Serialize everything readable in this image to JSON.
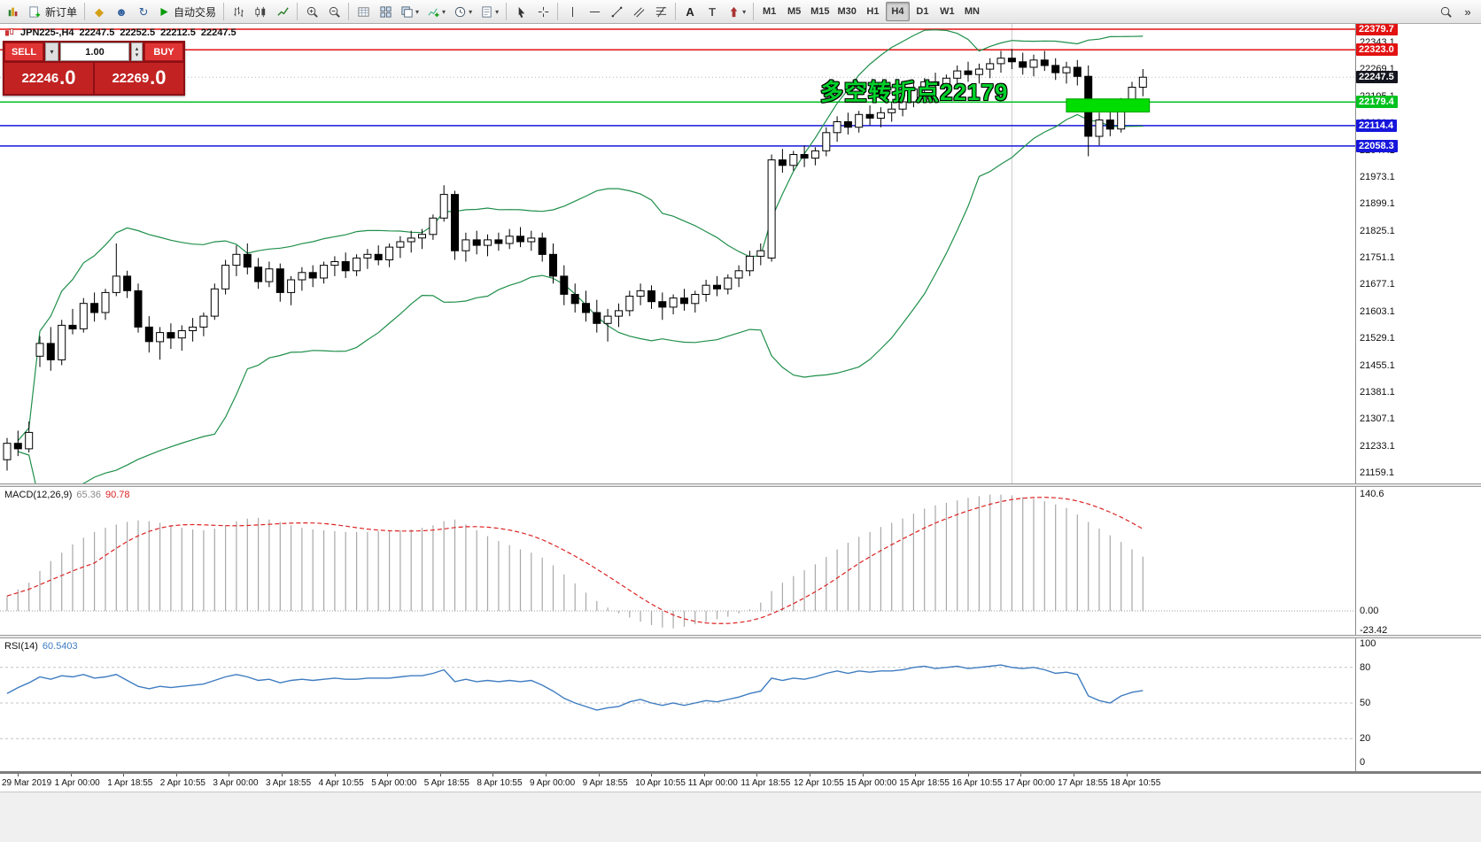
{
  "toolbar": {
    "new_order_label": "新订单",
    "autotrading_label": "自动交易",
    "timeframes": [
      "M1",
      "M5",
      "M15",
      "M30",
      "H1",
      "H4",
      "D1",
      "W1",
      "MN"
    ],
    "active_timeframe": "H4",
    "icons": {
      "caret": "▾",
      "up": "▴",
      "down": "▾",
      "metaeditor": "◆",
      "profiles": "☻",
      "refresh": "↻",
      "text": "A",
      "label": "T",
      "overflow": "»"
    }
  },
  "symbol_line": {
    "symbol": "JPN225-,H4",
    "open": "22247.5",
    "high": "22252.5",
    "low": "22212.5",
    "close": "22247.5"
  },
  "trade_panel": {
    "sell_label": "SELL",
    "buy_label": "BUY",
    "volume": "1.00",
    "sell_int": "22246",
    "sell_dec": ".0",
    "buy_int": "22269",
    "buy_dec": ".0"
  },
  "price_axis": {
    "grid_values": [
      22343.1,
      22269.1,
      22195.1,
      22121.1,
      22047.1,
      21973.1,
      21899.1,
      21825.1,
      21751.1,
      21677.1,
      21603.1,
      21529.1,
      21455.1,
      21381.1,
      21307.1,
      21233.1,
      21159.1
    ],
    "markers": [
      {
        "text": "22379.7",
        "price": 22379.7,
        "bg": "#e21212"
      },
      {
        "text": "22323.0",
        "price": 22323.0,
        "bg": "#e21212"
      },
      {
        "text": "22247.5",
        "price": 22247.5,
        "bg": "#14141e"
      },
      {
        "text": "22179.4",
        "price": 22179.4,
        "bg": "#00c21e"
      },
      {
        "text": "22114.4",
        "price": 22114.4,
        "bg": "#1616dc"
      },
      {
        "text": "22058.3",
        "price": 22058.3,
        "bg": "#1616dc"
      }
    ]
  },
  "time_axis": {
    "labels": [
      "29 Mar 2019",
      "1 Apr 00:00",
      "1 Apr 18:55",
      "2 Apr 10:55",
      "3 Apr 00:00",
      "3 Apr 18:55",
      "4 Apr 10:55",
      "5 Apr 00:00",
      "5 Apr 18:55",
      "8 Apr 10:55",
      "9 Apr 00:00",
      "9 Apr 18:55",
      "10 Apr 10:55",
      "11 Apr 00:00",
      "11 Apr 18:55",
      "12 Apr 10:55",
      "15 Apr 00:00",
      "15 Apr 18:55",
      "16 Apr 10:55",
      "17 Apr 00:00",
      "17 Apr 18:55",
      "18 Apr 10:55"
    ]
  },
  "chart_data": [
    {
      "type": "candlestick",
      "name": "JPN225- H4",
      "ylim": [
        21129.7,
        22394.3
      ],
      "ohlc": [
        [
          21195,
          21255,
          21165,
          21240
        ],
        [
          21240,
          21275,
          21205,
          21225
        ],
        [
          21225,
          21300,
          21215,
          21270
        ],
        [
          21480,
          21535,
          21450,
          21515
        ],
        [
          21515,
          21560,
          21440,
          21470
        ],
        [
          21470,
          21580,
          21455,
          21565
        ],
        [
          21565,
          21610,
          21540,
          21555
        ],
        [
          21555,
          21640,
          21545,
          21625
        ],
        [
          21625,
          21655,
          21575,
          21600
        ],
        [
          21600,
          21665,
          21580,
          21655
        ],
        [
          21655,
          21790,
          21645,
          21700
        ],
        [
          21700,
          21715,
          21640,
          21660
        ],
        [
          21660,
          21680,
          21545,
          21560
        ],
        [
          21560,
          21590,
          21490,
          21520
        ],
        [
          21520,
          21560,
          21470,
          21545
        ],
        [
          21545,
          21570,
          21500,
          21530
        ],
        [
          21530,
          21565,
          21495,
          21550
        ],
        [
          21550,
          21585,
          21520,
          21560
        ],
        [
          21560,
          21600,
          21535,
          21590
        ],
        [
          21590,
          21680,
          21580,
          21665
        ],
        [
          21665,
          21745,
          21650,
          21730
        ],
        [
          21730,
          21785,
          21700,
          21760
        ],
        [
          21760,
          21790,
          21705,
          21725
        ],
        [
          21725,
          21750,
          21665,
          21685
        ],
        [
          21685,
          21740,
          21670,
          21720
        ],
        [
          21720,
          21735,
          21630,
          21655
        ],
        [
          21655,
          21700,
          21620,
          21690
        ],
        [
          21690,
          21725,
          21660,
          21710
        ],
        [
          21710,
          21730,
          21670,
          21695
        ],
        [
          21695,
          21740,
          21680,
          21730
        ],
        [
          21730,
          21755,
          21700,
          21740
        ],
        [
          21740,
          21765,
          21695,
          21715
        ],
        [
          21715,
          21760,
          21700,
          21750
        ],
        [
          21750,
          21775,
          21720,
          21760
        ],
        [
          21760,
          21785,
          21730,
          21745
        ],
        [
          21745,
          21790,
          21725,
          21780
        ],
        [
          21780,
          21810,
          21750,
          21795
        ],
        [
          21795,
          21825,
          21765,
          21805
        ],
        [
          21805,
          21830,
          21775,
          21815
        ],
        [
          21815,
          21870,
          21800,
          21860
        ],
        [
          21860,
          21950,
          21850,
          21925
        ],
        [
          21925,
          21935,
          21745,
          21770
        ],
        [
          21770,
          21820,
          21740,
          21800
        ],
        [
          21800,
          21825,
          21760,
          21785
        ],
        [
          21785,
          21815,
          21755,
          21800
        ],
        [
          21800,
          21820,
          21770,
          21790
        ],
        [
          21790,
          21830,
          21775,
          21810
        ],
        [
          21810,
          21835,
          21780,
          21795
        ],
        [
          21795,
          21825,
          21770,
          21805
        ],
        [
          21805,
          21820,
          21740,
          21760
        ],
        [
          21760,
          21790,
          21680,
          21700
        ],
        [
          21700,
          21730,
          21620,
          21650
        ],
        [
          21650,
          21680,
          21600,
          21625
        ],
        [
          21625,
          21660,
          21575,
          21600
        ],
        [
          21600,
          21635,
          21545,
          21570
        ],
        [
          21570,
          21610,
          21520,
          21590
        ],
        [
          21590,
          21625,
          21560,
          21605
        ],
        [
          21605,
          21660,
          21590,
          21645
        ],
        [
          21645,
          21680,
          21620,
          21660
        ],
        [
          21660,
          21675,
          21610,
          21630
        ],
        [
          21630,
          21655,
          21580,
          21615
        ],
        [
          21615,
          21650,
          21595,
          21640
        ],
        [
          21640,
          21665,
          21605,
          21625
        ],
        [
          21625,
          21660,
          21600,
          21650
        ],
        [
          21650,
          21690,
          21630,
          21675
        ],
        [
          21675,
          21700,
          21645,
          21665
        ],
        [
          21665,
          21705,
          21650,
          21695
        ],
        [
          21695,
          21730,
          21670,
          21715
        ],
        [
          21715,
          21770,
          21700,
          21755
        ],
        [
          21755,
          21790,
          21730,
          21770
        ],
        [
          21750,
          22035,
          21740,
          22020
        ],
        [
          22020,
          22050,
          21985,
          22005
        ],
        [
          22005,
          22045,
          21990,
          22035
        ],
        [
          22035,
          22060,
          22000,
          22025
        ],
        [
          22025,
          22055,
          22005,
          22045
        ],
        [
          22045,
          22110,
          22030,
          22095
        ],
        [
          22095,
          22140,
          22070,
          22125
        ],
        [
          22125,
          22150,
          22090,
          22110
        ],
        [
          22110,
          22155,
          22095,
          22145
        ],
        [
          22145,
          22170,
          22115,
          22135
        ],
        [
          22135,
          22165,
          22110,
          22150
        ],
        [
          22150,
          22180,
          22125,
          22160
        ],
        [
          22160,
          22195,
          22140,
          22180
        ],
        [
          22180,
          22230,
          22165,
          22215
        ],
        [
          22215,
          22245,
          22190,
          22235
        ],
        [
          22235,
          22260,
          22205,
          22225
        ],
        [
          22225,
          22255,
          22200,
          22245
        ],
        [
          22245,
          22280,
          22220,
          22265
        ],
        [
          22265,
          22290,
          22235,
          22255
        ],
        [
          22255,
          22285,
          22230,
          22270
        ],
        [
          22270,
          22300,
          22245,
          22285
        ],
        [
          22285,
          22320,
          22260,
          22300
        ],
        [
          22300,
          22325,
          22270,
          22290
        ],
        [
          22290,
          22315,
          22255,
          22275
        ],
        [
          22275,
          22310,
          22250,
          22295
        ],
        [
          22295,
          22320,
          22265,
          22280
        ],
        [
          22280,
          22300,
          22240,
          22260
        ],
        [
          22260,
          22290,
          22230,
          22275
        ],
        [
          22275,
          22295,
          22225,
          22250
        ],
        [
          22250,
          22280,
          22030,
          22085
        ],
        [
          22085,
          22150,
          22060,
          22130
        ],
        [
          22130,
          22165,
          22085,
          22105
        ],
        [
          22105,
          22190,
          22095,
          22175
        ],
        [
          22175,
          22235,
          22155,
          22220
        ],
        [
          22220,
          22270,
          22195,
          22247.5
        ]
      ],
      "overlays": {
        "bollinger_bands": {
          "period": 20,
          "deviation": 2,
          "color": "#1f8f4a"
        },
        "horizontal_lines": [
          {
            "price": 22379.7,
            "color": "#e21212",
            "style": "solid"
          },
          {
            "price": 22323.0,
            "color": "#e21212",
            "style": "solid"
          },
          {
            "price": 22247.5,
            "color": "#b8b8b8",
            "style": "dotted"
          },
          {
            "price": 22179.4,
            "color": "#00c21e",
            "style": "solid"
          },
          {
            "price": 22114.4,
            "color": "#1616dc",
            "style": "solid"
          },
          {
            "price": 22058.3,
            "color": "#1616dc",
            "style": "solid"
          }
        ],
        "highlight_box": {
          "from_index": 97.4,
          "to_index": 104.2,
          "price_top": 22188,
          "price_bottom": 22152,
          "color": "#00dd00"
        },
        "vertical_line_index": 92,
        "annotation": {
          "text": "多空转折点22179",
          "color": "#00d22b"
        }
      }
    },
    {
      "type": "bar",
      "name": "MACD(12,26,9)",
      "current_values": [
        "65.36",
        "90.78"
      ],
      "bar_color": "#a8a8a8",
      "signal": {
        "period": 9,
        "color": "#dd2222",
        "style": "dashed"
      },
      "ylim": [
        -23.42,
        140.6
      ],
      "axis_labels": [
        "140.6",
        "0.00",
        "-23.42"
      ],
      "values": [
        18,
        26,
        34,
        48,
        60,
        70,
        80,
        88,
        95,
        100,
        104,
        107,
        109,
        108,
        106,
        103,
        100,
        98,
        97,
        99,
        103,
        108,
        111,
        112,
        110,
        107,
        103,
        100,
        98,
        97,
        96,
        95,
        95,
        95,
        96,
        96,
        97,
        98,
        100,
        103,
        108,
        110,
        104,
        97,
        90,
        84,
        79,
        74,
        70,
        64,
        55,
        44,
        33,
        22,
        12,
        4,
        -3,
        -8,
        -13,
        -17,
        -20,
        -21,
        -19,
        -16,
        -13,
        -10,
        -7,
        -3,
        2,
        10,
        24,
        34,
        42,
        49,
        56,
        65,
        74,
        82,
        89,
        95,
        101,
        106,
        111,
        117,
        123,
        127,
        130,
        133,
        136,
        138,
        140,
        140,
        139,
        137,
        135,
        132,
        128,
        124,
        116,
        107,
        99,
        91,
        83,
        74,
        65.36
      ]
    },
    {
      "type": "line",
      "name": "RSI(14)",
      "current_value": "60.5403",
      "color": "#3f7cc1",
      "ylim": [
        0,
        100
      ],
      "levels": [
        20,
        50,
        80
      ],
      "axis_labels": [
        "100",
        "80",
        "50",
        "20",
        "0"
      ],
      "values": [
        58,
        63,
        67,
        72,
        70,
        73,
        72,
        74,
        71,
        72,
        74,
        69,
        64,
        62,
        64,
        63,
        64,
        65,
        66,
        69,
        72,
        74,
        72,
        69,
        70,
        67,
        69,
        70,
        69,
        70,
        71,
        70,
        70,
        71,
        71,
        71,
        72,
        73,
        73,
        75,
        78,
        68,
        70,
        68,
        69,
        68,
        69,
        68,
        69,
        65,
        60,
        54,
        50,
        47,
        44,
        46,
        47,
        51,
        53,
        50,
        48,
        50,
        48,
        50,
        52,
        51,
        53,
        55,
        58,
        60,
        71,
        69,
        71,
        70,
        72,
        75,
        77,
        75,
        77,
        76,
        77,
        77,
        78,
        80,
        81,
        79,
        80,
        81,
        79,
        80,
        81,
        82,
        80,
        79,
        80,
        78,
        75,
        76,
        74,
        56,
        52,
        50,
        56,
        59,
        60.54
      ]
    }
  ]
}
